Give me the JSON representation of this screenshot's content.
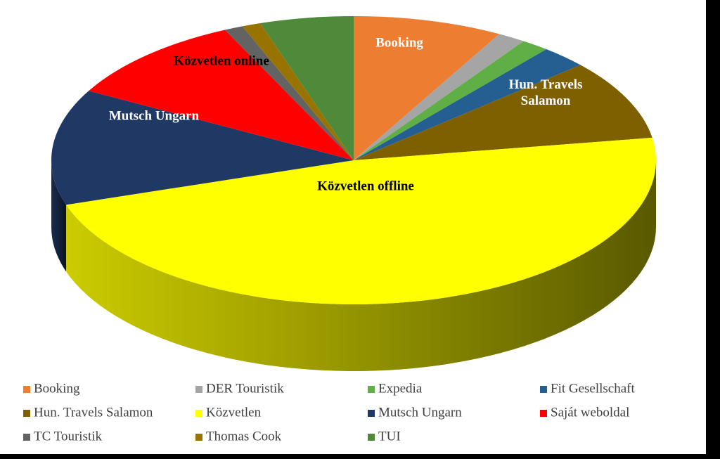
{
  "chart_data": {
    "type": "pie3d",
    "series": [
      {
        "name": "Booking",
        "color": "#ED7D31",
        "value": 8,
        "label": [
          "Booking"
        ]
      },
      {
        "name": "DER Touristik",
        "color": "#A5A5A5",
        "value": 1.5
      },
      {
        "name": "Expedia",
        "color": "#5FAF46",
        "value": 1.5
      },
      {
        "name": "Fit Gesellschaft",
        "color": "#255E91",
        "value": 2.5
      },
      {
        "name": "Hun. Travels Salamon",
        "color": "#7F6000",
        "value": 9,
        "label": [
          "Hun. Travels",
          "Salamon"
        ]
      },
      {
        "name": "Közvetlen",
        "color": "#FFFF00",
        "value": 47.5,
        "label": [
          "Közvetlen offline"
        ]
      },
      {
        "name": "Mutsch Ungarn",
        "color": "#1F3864",
        "value": 13,
        "label": [
          "Mutsch Ungarn"
        ]
      },
      {
        "name": "Saját weboldal",
        "color": "#FF0000",
        "value": 10,
        "label": [
          "Közvetlen online"
        ]
      },
      {
        "name": "TC Touristik",
        "color": "#636363",
        "value": 1
      },
      {
        "name": "Thomas Cook",
        "color": "#997300",
        "value": 1
      },
      {
        "name": "TUI",
        "color": "#4E8A3A",
        "value": 5
      }
    ],
    "legend": "bottom"
  }
}
